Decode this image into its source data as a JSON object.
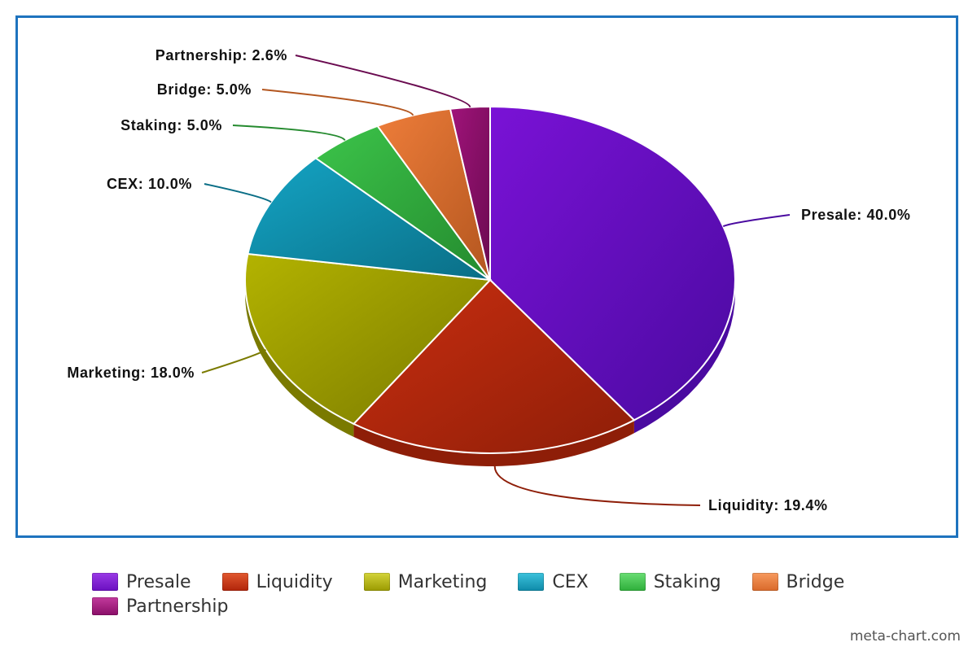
{
  "chart_data": {
    "type": "pie",
    "title": "",
    "slices": [
      {
        "name": "Presale",
        "value": 40.0,
        "label": "Presale: 40.0%",
        "color": "#7a12d6",
        "dark": "#4a0aa0"
      },
      {
        "name": "Liquidity",
        "value": 19.4,
        "label": "Liquidity: 19.4%",
        "color": "#c92e10",
        "dark": "#8e1e08"
      },
      {
        "name": "Marketing",
        "value": 18.0,
        "label": "Marketing: 18.0%",
        "color": "#b3b300",
        "dark": "#7a7a00"
      },
      {
        "name": "CEX",
        "value": 10.0,
        "label": "CEX: 10.0%",
        "color": "#14a4c4",
        "dark": "#0a6e86"
      },
      {
        "name": "Staking",
        "value": 5.0,
        "label": "Staking: 5.0%",
        "color": "#3cc44a",
        "dark": "#248a2e"
      },
      {
        "name": "Bridge",
        "value": 5.0,
        "label": "Bridge: 5.0%",
        "color": "#ee7d3a",
        "dark": "#b3561f"
      },
      {
        "name": "Partnership",
        "value": 2.6,
        "label": "Partnership: 2.6%",
        "color": "#a0137a",
        "dark": "#6a0b50"
      }
    ],
    "legend": "bottom"
  },
  "legend": {
    "items": [
      "Presale",
      "Liquidity",
      "Marketing",
      "CEX",
      "Staking",
      "Bridge",
      "Partnership"
    ]
  },
  "credit": "meta-chart.com"
}
